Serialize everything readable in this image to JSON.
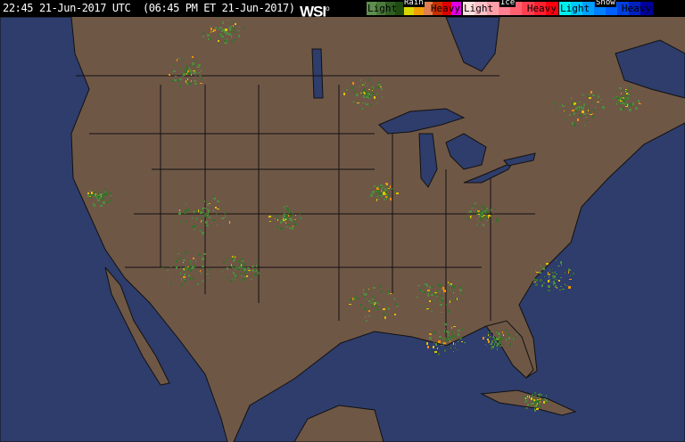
{
  "header": {
    "timestamp": "22:45 21-Jun-2017 UTC  (06:45 PM ET 21-Jun-2017)",
    "logo": "WSI",
    "legend": [
      {
        "title": "Rain",
        "light": "Light",
        "heavy": "Heavy",
        "colors": [
          "#5f8f4f",
          "#4a7a3a",
          "#2f5f22",
          "#1f4a10",
          "#d8d800",
          "#f0a000",
          "#e08050",
          "#c83000",
          "#e00000",
          "#e000e0"
        ]
      },
      {
        "title": "Ice",
        "light": "Light",
        "heavy": "Heavy",
        "colors": [
          "#ffe0e0",
          "#ffc0c8",
          "#ffa0a8",
          "#ff8090",
          "#ff6070",
          "#ff4050",
          "#ff2030",
          "#ff0010"
        ]
      },
      {
        "title": "Snow",
        "light": "Light",
        "heavy": "Heavy",
        "colors": [
          "#00f0f0",
          "#00c8ff",
          "#00a0ff",
          "#0080ff",
          "#0060ff",
          "#0040e0",
          "#0020c0",
          "#0000a0"
        ]
      }
    ]
  },
  "map": {
    "ocean_color": "#2e3d6b",
    "land_color": "#6f5746",
    "border_color": "#111111"
  }
}
